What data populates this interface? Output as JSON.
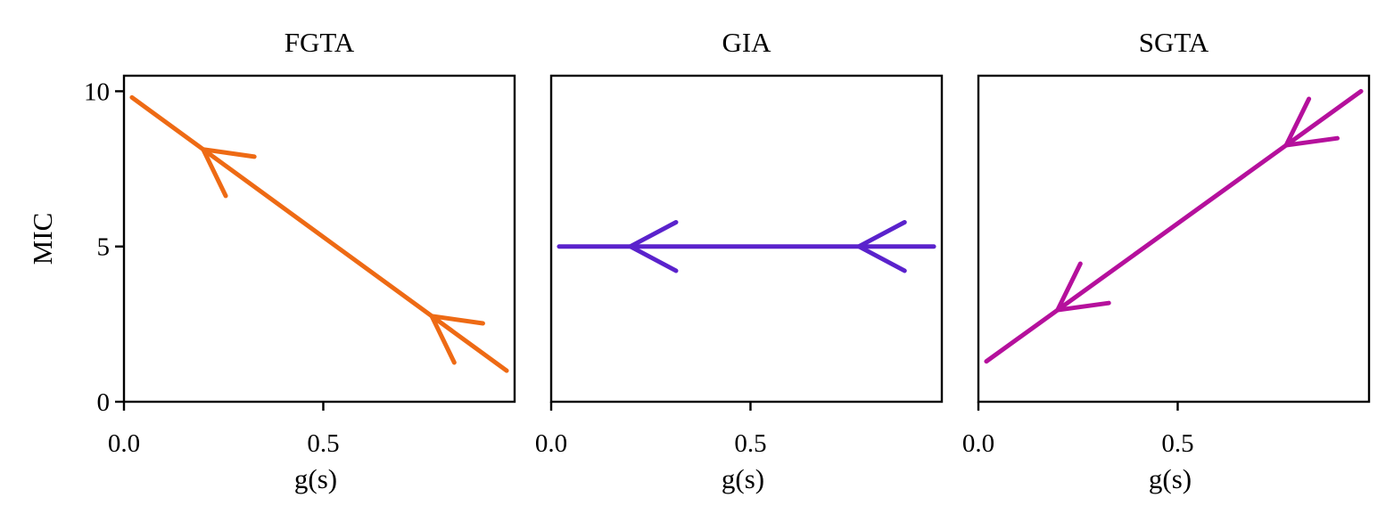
{
  "figure": {
    "shared_ylabel": "MIC",
    "shared_xlabel": "g(s)"
  },
  "chart_data": [
    {
      "type": "line",
      "title": "FGTA",
      "xlabel": "g(s)",
      "ylabel": "MIC",
      "xlim": [
        0.0,
        0.98
      ],
      "ylim": [
        0,
        10.5
      ],
      "xticks": [
        "0.0",
        "0.5"
      ],
      "yticks": [
        "0",
        "5",
        "10"
      ],
      "color": "#ee6a14",
      "direction": "right-to-left",
      "series": [
        {
          "x": [
            0.02,
            0.96
          ],
          "y": [
            9.8,
            1.0
          ]
        }
      ]
    },
    {
      "type": "line",
      "title": "GIA",
      "xlabel": "g(s)",
      "xlim": [
        0.0,
        0.98
      ],
      "ylim": [
        0,
        10.5
      ],
      "xticks": [
        "0.0",
        "0.5"
      ],
      "yticks": [],
      "color": "#5a22cc",
      "direction": "right-to-left",
      "series": [
        {
          "x": [
            0.02,
            0.96
          ],
          "y": [
            5.0,
            5.0
          ]
        }
      ]
    },
    {
      "type": "line",
      "title": "SGTA",
      "xlabel": "g(s)",
      "xlim": [
        0.0,
        0.98
      ],
      "ylim": [
        0,
        10.5
      ],
      "xticks": [
        "0.0",
        "0.5"
      ],
      "yticks": [],
      "color": "#b5109c",
      "direction": "right-to-left",
      "series": [
        {
          "x": [
            0.02,
            0.96
          ],
          "y": [
            1.3,
            10.0
          ]
        }
      ]
    }
  ]
}
